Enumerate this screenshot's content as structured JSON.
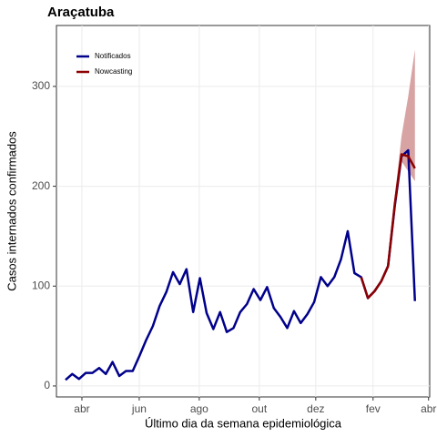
{
  "chart_data": {
    "type": "line",
    "title": "Araçatuba",
    "x_label": "Último dia da semana epidemiológica",
    "y_label": "Casos internados confirmados",
    "x": [
      0,
      1,
      2,
      3,
      4,
      5,
      6,
      7,
      8,
      9,
      10,
      11,
      12,
      13,
      14,
      15,
      16,
      17,
      18,
      19,
      20,
      21,
      22,
      23,
      24,
      25,
      26,
      27,
      28,
      29,
      30,
      31,
      32,
      33,
      34,
      35,
      36,
      37,
      38,
      39,
      40,
      41,
      42,
      43,
      44,
      45,
      46,
      47,
      48,
      49,
      50,
      51,
      52
    ],
    "series": [
      {
        "name": "Notificados",
        "color": "#00008b",
        "values": [
          6,
          12,
          7,
          13,
          13,
          18,
          12,
          24,
          10,
          15,
          15,
          30,
          46,
          60,
          80,
          94,
          114,
          102,
          117,
          74,
          108,
          73,
          57,
          74,
          54,
          58,
          74,
          82,
          97,
          86,
          99,
          78,
          69,
          58,
          75,
          63,
          72,
          84,
          109,
          100,
          109,
          127,
          155,
          113,
          109,
          88,
          95,
          105,
          120,
          180,
          230,
          236,
          85
        ]
      },
      {
        "name": "Nowcasting",
        "color": "#8b0000",
        "values": [
          null,
          null,
          null,
          null,
          null,
          null,
          null,
          null,
          null,
          null,
          null,
          null,
          null,
          null,
          null,
          null,
          null,
          null,
          null,
          null,
          null,
          null,
          null,
          null,
          null,
          null,
          null,
          null,
          null,
          null,
          null,
          null,
          null,
          null,
          null,
          null,
          null,
          null,
          null,
          null,
          null,
          null,
          null,
          null,
          109,
          88,
          95,
          105,
          120,
          182,
          232,
          230,
          218
        ],
        "band_color": "#d8a3a3",
        "lower": [
          null,
          null,
          null,
          null,
          null,
          null,
          null,
          null,
          null,
          null,
          null,
          null,
          null,
          null,
          null,
          null,
          null,
          null,
          null,
          null,
          null,
          null,
          null,
          null,
          null,
          null,
          null,
          null,
          null,
          null,
          null,
          null,
          null,
          null,
          null,
          null,
          null,
          null,
          null,
          null,
          null,
          null,
          null,
          null,
          null,
          null,
          null,
          null,
          120,
          175,
          225,
          215,
          205
        ],
        "upper": [
          null,
          null,
          null,
          null,
          null,
          null,
          null,
          null,
          null,
          null,
          null,
          null,
          null,
          null,
          null,
          null,
          null,
          null,
          null,
          null,
          null,
          null,
          null,
          null,
          null,
          null,
          null,
          null,
          null,
          null,
          null,
          null,
          null,
          null,
          null,
          null,
          null,
          null,
          null,
          null,
          null,
          null,
          null,
          null,
          null,
          null,
          null,
          null,
          120,
          190,
          250,
          290,
          337
        ]
      }
    ],
    "xlim": [
      -1.35,
      54.2
    ],
    "xticks": [
      {
        "value": 2.44,
        "label": "abr"
      },
      {
        "value": 10.97,
        "label": "jun"
      },
      {
        "value": 19.9,
        "label": "ago"
      },
      {
        "value": 28.84,
        "label": "out"
      },
      {
        "value": 37.24,
        "label": "dez"
      },
      {
        "value": 45.77,
        "label": "fev"
      },
      {
        "value": 54.03,
        "label": "abr"
      }
    ],
    "ylim": [
      -11,
      361
    ],
    "yticks": [
      0,
      100,
      200,
      300
    ],
    "grid": true,
    "legend": "top-left"
  }
}
